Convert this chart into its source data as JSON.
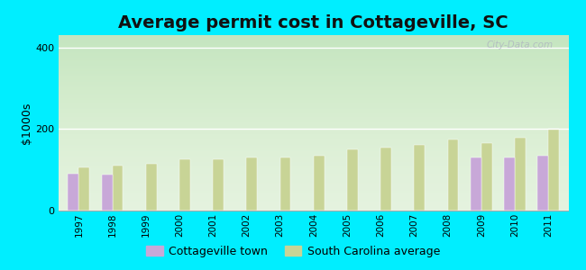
{
  "title": "Average permit cost in Cottageville, SC",
  "ylabel": "$1000s",
  "years": [
    1997,
    1998,
    1999,
    2000,
    2001,
    2002,
    2003,
    2004,
    2005,
    2006,
    2007,
    2008,
    2009,
    2010,
    2011
  ],
  "cottageville": [
    90,
    88,
    null,
    null,
    null,
    null,
    null,
    null,
    null,
    null,
    null,
    null,
    130,
    130,
    135
  ],
  "sc_average": [
    105,
    110,
    115,
    125,
    125,
    130,
    130,
    135,
    150,
    155,
    160,
    175,
    165,
    178,
    200
  ],
  "bar_width": 0.32,
  "cottageville_color": "#c8a8d8",
  "sc_color": "#c8d496",
  "ylim": [
    0,
    430
  ],
  "yticks": [
    0,
    200,
    400
  ],
  "outer_bg": "#00eeff",
  "title_fontsize": 14,
  "legend_labels": [
    "Cottageville town",
    "South Carolina average"
  ],
  "watermark": "City-Data.com"
}
